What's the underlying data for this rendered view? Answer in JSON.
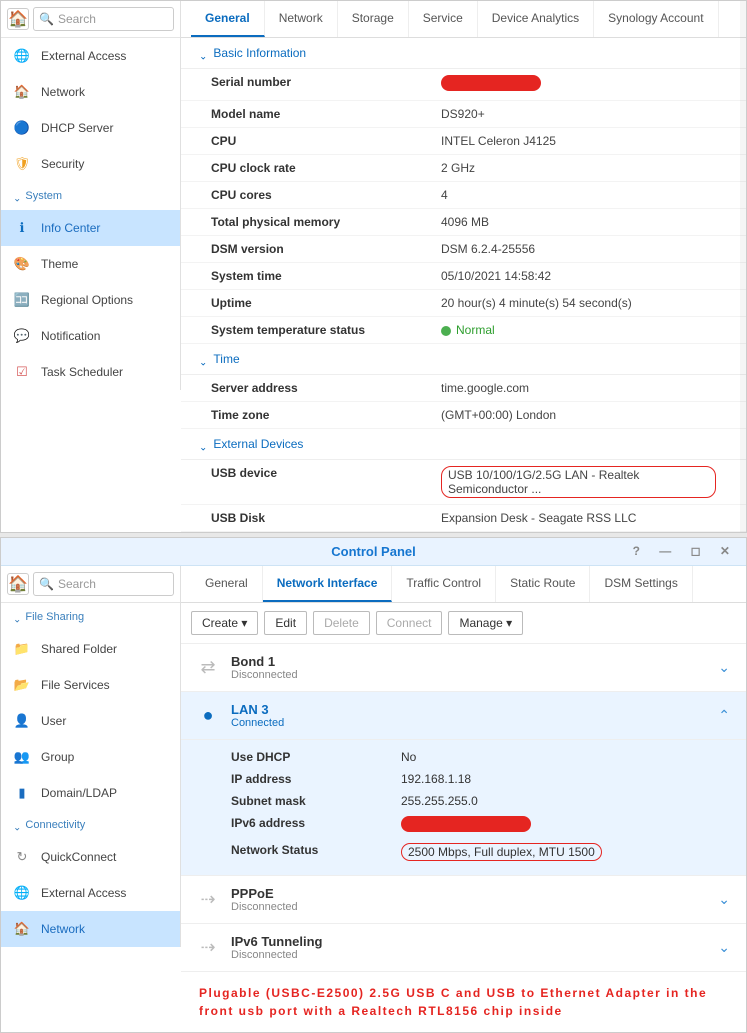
{
  "panel1": {
    "search_placeholder": "Search",
    "sidebar": {
      "items_top": [
        {
          "icon": "🌐",
          "color": "#0b6cbf",
          "label": "External Access"
        },
        {
          "icon": "🏠",
          "color": "#d68a2e",
          "label": "Network"
        },
        {
          "icon": "🔵",
          "color": "#0b9ad6",
          "label": "DHCP Server"
        },
        {
          "icon": "🛡",
          "color": "#f0a020",
          "label": "Security"
        }
      ],
      "group1": "System",
      "items_sys": [
        {
          "icon": "ℹ",
          "color": "#0b6cbf",
          "label": "Info Center",
          "active": true
        },
        {
          "icon": "🎨",
          "color": "#3bb36b",
          "label": "Theme"
        },
        {
          "icon": "🈁",
          "color": "#e77a2e",
          "label": "Regional Options"
        },
        {
          "icon": "💬",
          "color": "#3bb36b",
          "label": "Notification"
        },
        {
          "icon": "☑",
          "color": "#d65a5a",
          "label": "Task Scheduler"
        }
      ]
    },
    "tabs": [
      "General",
      "Network",
      "Storage",
      "Service",
      "Device Analytics",
      "Synology Account"
    ],
    "active_tab": 0,
    "sections": {
      "basic": {
        "title": "Basic Information",
        "rows": [
          {
            "label": "Serial number",
            "val": "__REDACTED__",
            "redact_w": 100
          },
          {
            "label": "Model name",
            "val": "DS920+"
          },
          {
            "label": "CPU",
            "val": "INTEL Celeron J4125"
          },
          {
            "label": "CPU clock rate",
            "val": "2 GHz"
          },
          {
            "label": "CPU cores",
            "val": "4"
          },
          {
            "label": "Total physical memory",
            "val": "4096 MB"
          },
          {
            "label": "DSM version",
            "val": "DSM 6.2.4-25556"
          },
          {
            "label": "System time",
            "val": "05/10/2021 14:58:42"
          },
          {
            "label": "Uptime",
            "val": "20 hour(s) 4 minute(s) 54 second(s)"
          },
          {
            "label": "System temperature status",
            "val": "Normal",
            "status": true
          }
        ]
      },
      "time": {
        "title": "Time",
        "rows": [
          {
            "label": "Server address",
            "val": "time.google.com"
          },
          {
            "label": "Time zone",
            "val": "(GMT+00:00) London"
          }
        ]
      },
      "ext": {
        "title": "External Devices",
        "rows": [
          {
            "label": "USB device",
            "val": "USB 10/100/1G/2.5G LAN - Realtek Semiconductor ...",
            "highlight": true
          },
          {
            "label": "USB Disk",
            "val": "Expansion Desk - Seagate RSS LLC"
          }
        ]
      }
    }
  },
  "panel2": {
    "title": "Control Panel",
    "search_placeholder": "Search",
    "sidebar": {
      "group1": "File Sharing",
      "items_fs": [
        {
          "icon": "📁",
          "color": "#e8a23a",
          "label": "Shared Folder"
        },
        {
          "icon": "📂",
          "color": "#3bb36b",
          "label": "File Services"
        },
        {
          "icon": "👤",
          "color": "#d65a5a",
          "label": "User"
        },
        {
          "icon": "👥",
          "color": "#d65a5a",
          "label": "Group"
        },
        {
          "icon": "▮",
          "color": "#1a6cbf",
          "label": "Domain/LDAP"
        }
      ],
      "group2": "Connectivity",
      "items_cn": [
        {
          "icon": "↻",
          "color": "#888",
          "label": "QuickConnect"
        },
        {
          "icon": "🌐",
          "color": "#0b6cbf",
          "label": "External Access"
        },
        {
          "icon": "🏠",
          "color": "#5aa9e0",
          "label": "Network",
          "active": true
        }
      ]
    },
    "tabs": [
      "General",
      "Network Interface",
      "Traffic Control",
      "Static Route",
      "DSM Settings"
    ],
    "active_tab": 1,
    "toolbar": {
      "create": "Create",
      "edit": "Edit",
      "delete": "Delete",
      "connect": "Connect",
      "manage": "Manage"
    },
    "interfaces": [
      {
        "name": "Bond 1",
        "sub": "Disconnected",
        "connected": false,
        "icon": "⇄"
      },
      {
        "name": "LAN 3",
        "sub": "Connected",
        "connected": true,
        "icon": "●—●",
        "expanded": true,
        "details": [
          {
            "label": "Use DHCP",
            "val": "No"
          },
          {
            "label": "IP address",
            "val": "192.168.1.18"
          },
          {
            "label": "Subnet mask",
            "val": "255.255.255.0"
          },
          {
            "label": "IPv6 address",
            "val": "__REDACTED__",
            "redact_w": 130
          },
          {
            "label": "Network Status",
            "val": "2500 Mbps, Full duplex, MTU 1500",
            "highlight": true
          }
        ]
      },
      {
        "name": "PPPoE",
        "sub": "Disconnected",
        "connected": false,
        "icon": "⇢"
      },
      {
        "name": "IPv6 Tunneling",
        "sub": "Disconnected",
        "connected": false,
        "icon": "⇢"
      }
    ],
    "footer_note": "Plugable (USBC-E2500) 2.5G USB C and USB to Ethernet Adapter in the front usb port with a Realtech RTL8156 chip inside"
  }
}
